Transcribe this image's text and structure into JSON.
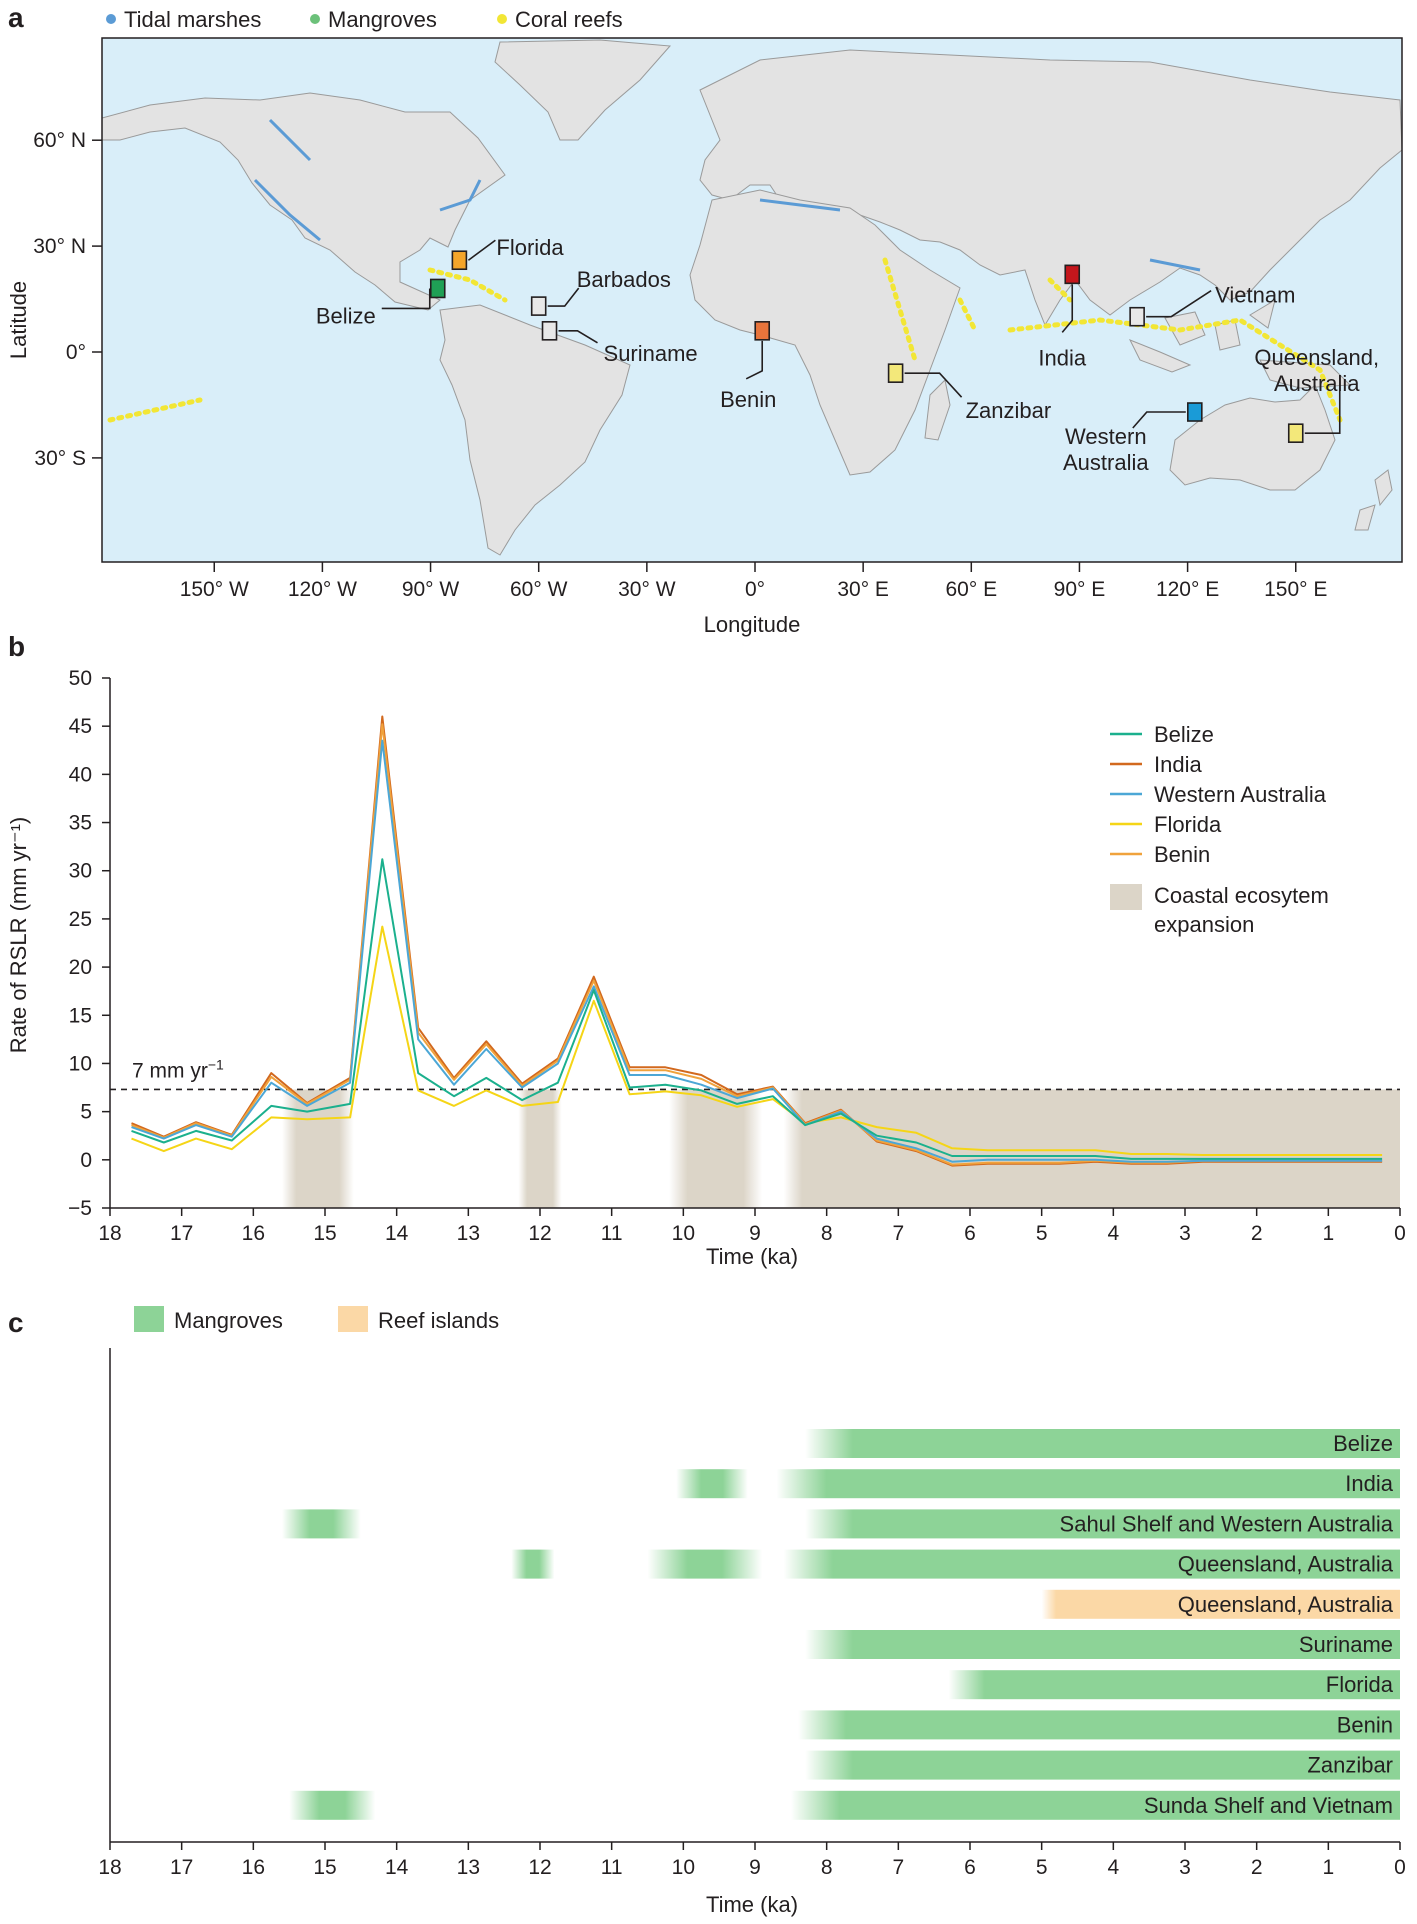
{
  "panels": {
    "a": "a",
    "b": "b",
    "c": "c"
  },
  "map": {
    "legend": [
      {
        "label": "Tidal marshes",
        "color": "#5b9bd5"
      },
      {
        "label": "Mangroves",
        "color": "#6cc17a"
      },
      {
        "label": "Coral reefs",
        "color": "#f2e635"
      }
    ],
    "ocean_color": "#d9eef9",
    "land_color": "#e3e3e3",
    "y_title": "Latitude",
    "x_title": "Longitude",
    "lat_ticks": [
      {
        "label": "60° N",
        "lat": 60
      },
      {
        "label": "30° N",
        "lat": 30
      },
      {
        "label": "0°",
        "lat": 0
      },
      {
        "label": "30° S",
        "lat": -30
      }
    ],
    "lon_ticks": [
      {
        "label": "150° W",
        "lon": -150
      },
      {
        "label": "120° W",
        "lon": -120
      },
      {
        "label": "90° W",
        "lon": -90
      },
      {
        "label": "60° W",
        "lon": -60
      },
      {
        "label": "30° W",
        "lon": -30
      },
      {
        "label": "0°",
        "lon": 0
      },
      {
        "label": "30° E",
        "lon": 30
      },
      {
        "label": "60° E",
        "lon": 60
      },
      {
        "label": "90° E",
        "lon": 90
      },
      {
        "label": "120° E",
        "lon": 120
      },
      {
        "label": "150° E",
        "lon": 150
      }
    ],
    "sites": [
      {
        "name": "Florida",
        "lon": -82,
        "lat": 26,
        "color": "#f4a52a"
      },
      {
        "name": "Belize",
        "lon": -88,
        "lat": 18,
        "color": "#1fa055"
      },
      {
        "name": "Barbados",
        "lon": -60,
        "lat": 13,
        "color": "#e8e8e8"
      },
      {
        "name": "Suriname",
        "lon": -57,
        "lat": 6,
        "color": "#e8e8e8"
      },
      {
        "name": "Benin",
        "lon": 2,
        "lat": 6,
        "color": "#e8743b"
      },
      {
        "name": "Zanzibar",
        "lon": 39,
        "lat": -6,
        "color": "#f3e87a"
      },
      {
        "name": "India",
        "lon": 88,
        "lat": 22,
        "color": "#c4161c"
      },
      {
        "name": "Vietnam",
        "lon": 106,
        "lat": 10,
        "color": "#e8e8e8"
      },
      {
        "name": "Western Australia",
        "lines": [
          "Western",
          "Australia"
        ],
        "lon": 122,
        "lat": -17,
        "color": "#1a9bd7"
      },
      {
        "name": "Queensland, Australia",
        "lines": [
          "Queensland,",
          "Australia"
        ],
        "lon": 150,
        "lat": -23,
        "color": "#f3e87a"
      }
    ]
  },
  "chart_data": [
    {
      "type": "line",
      "panel": "b",
      "xlabel": "Time (ka)",
      "ylabel": "Rate of RSLR (mm yr⁻¹)",
      "xlim": [
        18,
        0
      ],
      "ylim": [
        -5,
        50
      ],
      "x_ticks": [
        "18",
        "17",
        "16",
        "15",
        "14",
        "13",
        "12",
        "11",
        "10",
        "9",
        "8",
        "7",
        "6",
        "5",
        "4",
        "3",
        "2",
        "1",
        "0"
      ],
      "y_ticks": [
        "−5",
        "0",
        "5",
        "10",
        "15",
        "20",
        "25",
        "30",
        "35",
        "40",
        "45",
        "50"
      ],
      "x": [
        17.7,
        17.25,
        16.8,
        16.3,
        15.75,
        15.25,
        14.65,
        14.2,
        13.7,
        13.2,
        12.75,
        12.25,
        11.75,
        11.25,
        10.75,
        10.25,
        9.75,
        9.25,
        8.75,
        8.3,
        7.8,
        7.3,
        6.75,
        6.25,
        5.75,
        5.25,
        4.75,
        4.25,
        3.75,
        3.25,
        2.75,
        2.25,
        1.75,
        1.25,
        0.75,
        0.25
      ],
      "series": [
        {
          "name": "Belize",
          "color": "#1bb08d",
          "values": [
            3.0,
            1.8,
            3.0,
            2.0,
            5.6,
            5.0,
            5.8,
            31.2,
            9.0,
            6.6,
            8.5,
            6.2,
            8.0,
            17.6,
            7.5,
            7.8,
            7.2,
            5.8,
            6.6,
            3.6,
            4.8,
            2.5,
            1.8,
            0.4,
            0.4,
            0.4,
            0.4,
            0.4,
            0.1,
            0.1,
            0.1,
            0.1,
            0.1,
            0.1,
            0.1,
            0.1
          ]
        },
        {
          "name": "India",
          "color": "#d2691e",
          "values": [
            3.8,
            2.4,
            3.9,
            2.6,
            9.0,
            5.9,
            8.5,
            46.0,
            13.7,
            8.5,
            12.3,
            7.9,
            10.5,
            19.0,
            9.6,
            9.6,
            8.8,
            6.8,
            7.6,
            3.8,
            5.2,
            1.9,
            0.9,
            -0.6,
            -0.4,
            -0.4,
            -0.4,
            -0.2,
            -0.4,
            -0.4,
            -0.2,
            -0.2,
            -0.2,
            -0.2,
            -0.2,
            -0.2
          ]
        },
        {
          "name": "Western Australia",
          "color": "#4ca7d6",
          "values": [
            3.4,
            2.2,
            3.6,
            2.4,
            8.0,
            5.6,
            8.0,
            43.5,
            12.5,
            7.8,
            11.5,
            7.5,
            10.0,
            18.0,
            8.8,
            8.8,
            7.8,
            6.4,
            7.4,
            3.6,
            5.0,
            2.2,
            1.2,
            -0.2,
            0.0,
            0.0,
            0.0,
            0.0,
            -0.2,
            -0.2,
            -0.1,
            -0.1,
            -0.1,
            -0.1,
            -0.1,
            -0.1
          ]
        },
        {
          "name": "Florida",
          "color": "#f5d516",
          "values": [
            2.2,
            0.9,
            2.2,
            1.1,
            4.4,
            4.2,
            4.4,
            24.2,
            7.2,
            5.6,
            7.2,
            5.6,
            6.0,
            16.5,
            6.8,
            7.1,
            6.7,
            5.5,
            6.3,
            3.8,
            4.4,
            3.4,
            2.8,
            1.2,
            1.0,
            1.0,
            1.0,
            1.0,
            0.6,
            0.6,
            0.5,
            0.5,
            0.5,
            0.5,
            0.5,
            0.5
          ]
        },
        {
          "name": "Benin",
          "color": "#f0a23c",
          "values": [
            3.6,
            2.3,
            3.8,
            2.5,
            8.6,
            5.8,
            8.3,
            45.2,
            13.2,
            8.3,
            12.0,
            7.7,
            10.3,
            18.6,
            9.3,
            9.3,
            8.4,
            6.6,
            7.5,
            3.7,
            5.1,
            2.0,
            1.0,
            -0.5,
            -0.3,
            -0.3,
            -0.3,
            -0.1,
            -0.3,
            -0.3,
            -0.1,
            -0.1,
            -0.1,
            -0.1,
            -0.1,
            -0.1
          ]
        }
      ],
      "threshold": {
        "value": 7.3,
        "label": "7 mm yr",
        "label_sup": "−1"
      },
      "shaded_label_lines": [
        "Coastal ecosytem",
        "expansion"
      ],
      "shaded_color": "#dcd5c8",
      "shaded_periods": [
        [
          15.6,
          14.6
        ],
        [
          12.3,
          11.7
        ],
        [
          10.2,
          8.9
        ],
        [
          8.6,
          0.0
        ]
      ]
    },
    {
      "type": "timeline",
      "panel": "c",
      "xlabel": "Time (ka)",
      "xlim": [
        18,
        0
      ],
      "x_ticks": [
        "18",
        "17",
        "16",
        "15",
        "14",
        "13",
        "12",
        "11",
        "10",
        "9",
        "8",
        "7",
        "6",
        "5",
        "4",
        "3",
        "2",
        "1",
        "0"
      ],
      "legend": [
        {
          "label": "Mangroves",
          "color": "#8dd397"
        },
        {
          "label": "Reef islands",
          "color": "#fbd8a6"
        }
      ],
      "rows": [
        {
          "label": "Belize",
          "kind": "mangrove",
          "bars": [
            [
              8.3,
              0
            ]
          ]
        },
        {
          "label": "India",
          "kind": "mangrove",
          "bars": [
            [
              10.1,
              9.1
            ],
            [
              8.7,
              0
            ]
          ]
        },
        {
          "label": "Sahul Shelf and Western Australia",
          "kind": "mangrove",
          "bars": [
            [
              15.6,
              14.5
            ],
            [
              8.3,
              0
            ]
          ]
        },
        {
          "label": "Queensland, Australia",
          "kind": "mangrove",
          "bars": [
            [
              12.4,
              11.8
            ],
            [
              10.5,
              8.9
            ],
            [
              8.6,
              0
            ]
          ]
        },
        {
          "label": "Queensland, Australia",
          "kind": "reef",
          "bars": [
            [
              5.0,
              0
            ]
          ]
        },
        {
          "label": "Suriname",
          "kind": "mangrove",
          "bars": [
            [
              8.3,
              0
            ]
          ]
        },
        {
          "label": "Florida",
          "kind": "mangrove",
          "bars": [
            [
              6.3,
              0
            ]
          ]
        },
        {
          "label": "Benin",
          "kind": "mangrove",
          "bars": [
            [
              8.4,
              0
            ]
          ]
        },
        {
          "label": "Zanzibar",
          "kind": "mangrove",
          "bars": [
            [
              8.3,
              0
            ]
          ]
        },
        {
          "label": "Sunda Shelf and Vietnam",
          "kind": "mangrove",
          "bars": [
            [
              15.5,
              14.3
            ],
            [
              8.5,
              0
            ]
          ]
        }
      ]
    }
  ]
}
